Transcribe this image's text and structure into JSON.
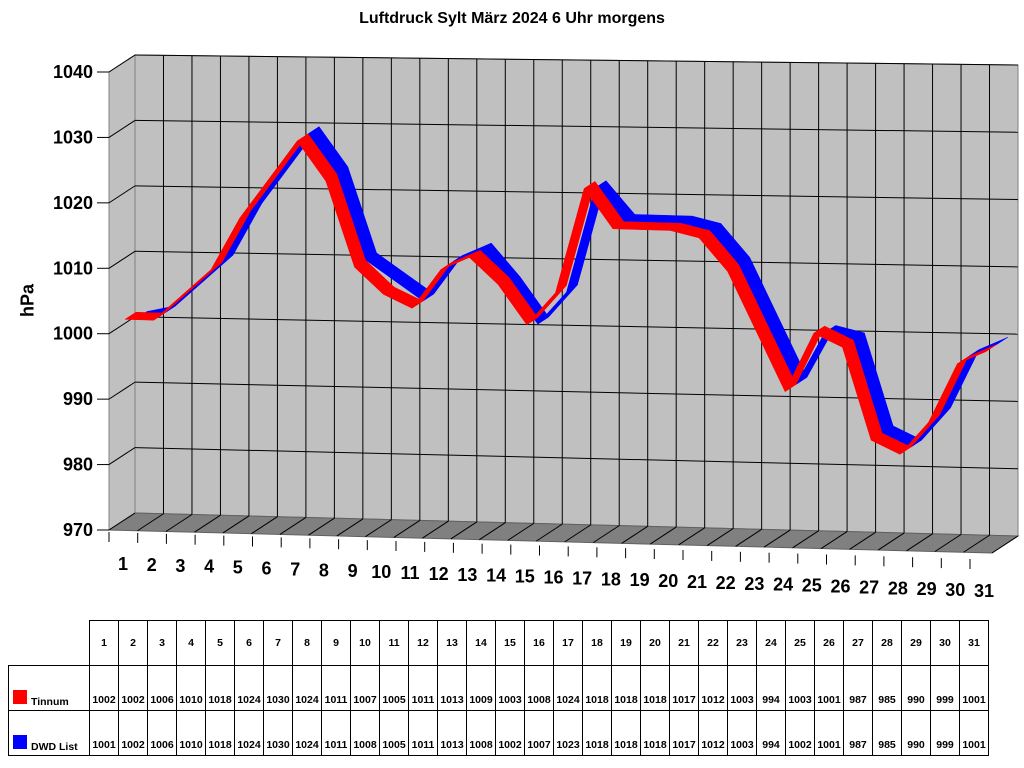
{
  "chart_data": {
    "type": "line",
    "style": "3d-ribbon",
    "title": "Luftdruck Sylt März 2024 6 Uhr morgens",
    "xlabel": "",
    "ylabel": "hPa",
    "ylim": [
      970,
      1040
    ],
    "yticks": [
      970,
      980,
      990,
      1000,
      1010,
      1020,
      1030,
      1040
    ],
    "grid": true,
    "legend_position": "data-table",
    "categories": [
      "1",
      "2",
      "3",
      "4",
      "5",
      "6",
      "7",
      "8",
      "9",
      "10",
      "11",
      "12",
      "13",
      "14",
      "15",
      "16",
      "17",
      "18",
      "19",
      "20",
      "21",
      "22",
      "23",
      "24",
      "25",
      "26",
      "27",
      "28",
      "29",
      "30",
      "31"
    ],
    "series": [
      {
        "name": "Tinnum",
        "color": "#ff0000",
        "values": [
          1002,
          1002,
          1006,
          1010,
          1018,
          1024,
          1030,
          1024,
          1011,
          1007,
          1005,
          1011,
          1013,
          1009,
          1003,
          1008,
          1024,
          1018,
          1018,
          1018,
          1017,
          1012,
          1003,
          994,
          1003,
          1001,
          987,
          985,
          990,
          999,
          1001
        ]
      },
      {
        "name": "DWD List",
        "color": "#0000ff",
        "values": [
          1001,
          1002,
          1006,
          1010,
          1018,
          1024,
          1030,
          1024,
          1011,
          1008,
          1005,
          1011,
          1013,
          1008,
          1002,
          1007,
          1023,
          1018,
          1018,
          1018,
          1017,
          1012,
          1003,
          994,
          1002,
          1001,
          987,
          985,
          990,
          999,
          1001
        ]
      }
    ]
  },
  "colors": {
    "wall": "#c0c0c0",
    "floor": "#808080",
    "grid": "#000000"
  }
}
